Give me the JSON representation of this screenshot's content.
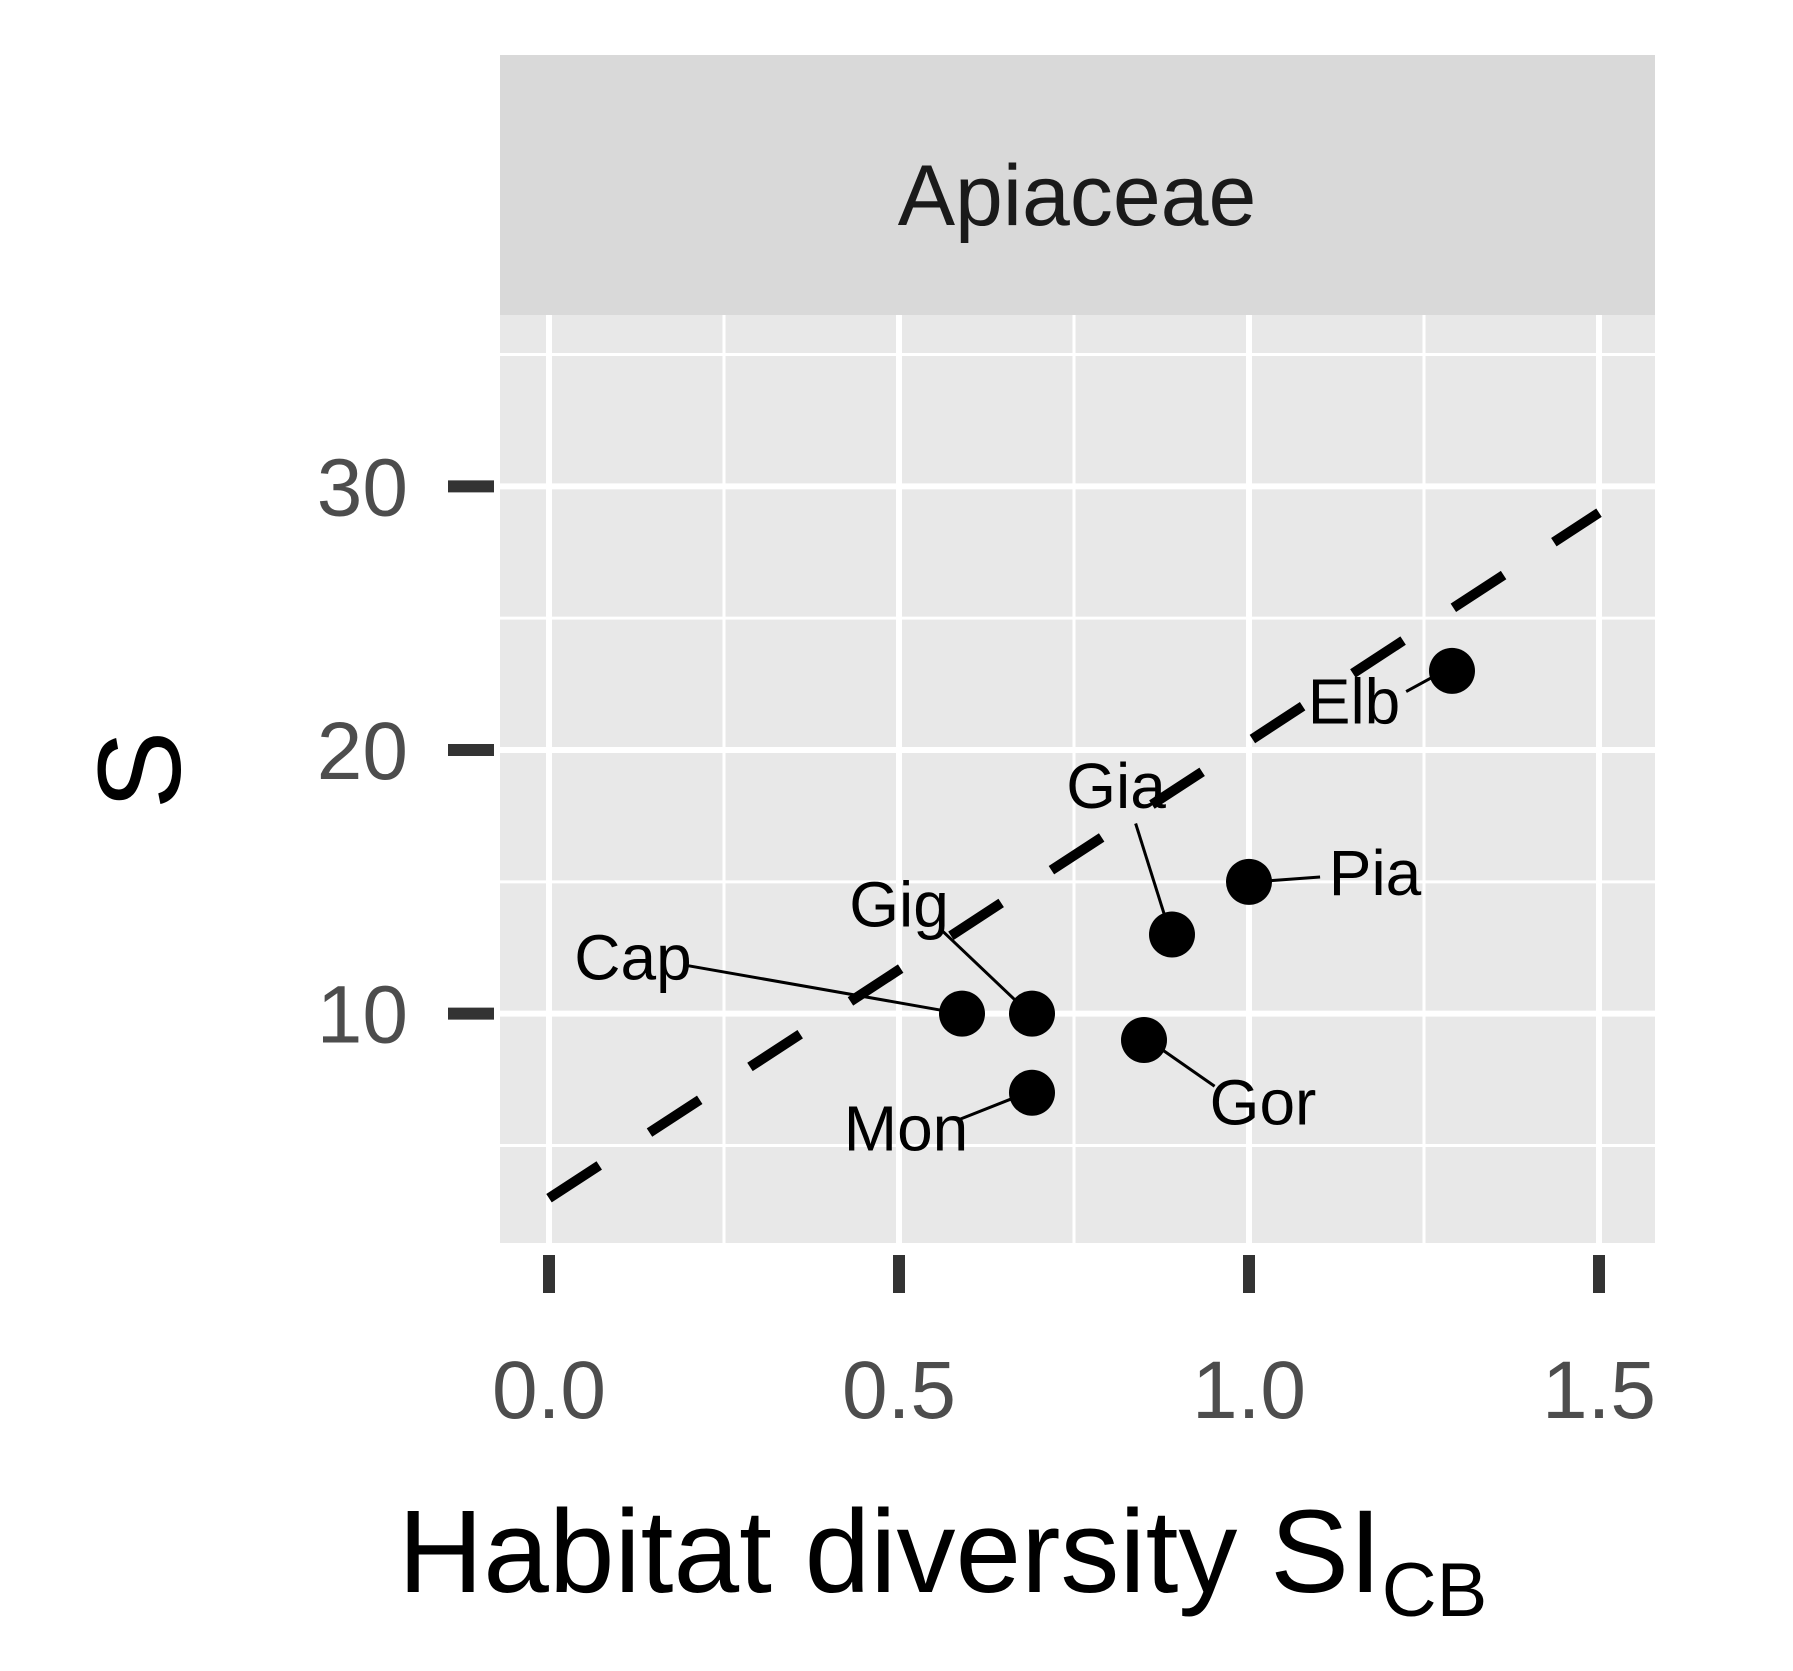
{
  "chart_data": {
    "type": "scatter",
    "panel_title": "Apiaceae",
    "xlabel_main": "Habitat diversity SI",
    "xlabel_sub": "CB",
    "ylabel": "S",
    "xlim": [
      -0.07,
      1.58
    ],
    "ylim": [
      1.3,
      36.5
    ],
    "x_ticks": [
      0.0,
      0.5,
      1.0,
      1.5
    ],
    "x_tick_labels": [
      "0.0",
      "0.5",
      "1.0",
      "1.5"
    ],
    "y_ticks": [
      10,
      20,
      30
    ],
    "y_tick_labels": [
      "10",
      "20",
      "30"
    ],
    "grid": true,
    "points": [
      {
        "label": "Cap",
        "x": 0.59,
        "y": 10.0,
        "label_x": 0.12,
        "label_y": 11.3
      },
      {
        "label": "Gig",
        "x": 0.69,
        "y": 10.0,
        "label_x": 0.5,
        "label_y": 13.3
      },
      {
        "label": "Mon",
        "x": 0.69,
        "y": 7.0,
        "label_x": 0.51,
        "label_y": 4.8
      },
      {
        "label": "Gor",
        "x": 0.85,
        "y": 9.0,
        "label_x": 1.02,
        "label_y": 5.8
      },
      {
        "label": "Gia",
        "x": 0.89,
        "y": 13.0,
        "label_x": 0.81,
        "label_y": 17.8
      },
      {
        "label": "Pia",
        "x": 1.0,
        "y": 15.0,
        "label_x": 1.18,
        "label_y": 14.5
      },
      {
        "label": "Elb",
        "x": 1.29,
        "y": 23.0,
        "label_x": 1.15,
        "label_y": 21.0
      }
    ],
    "fit_line": {
      "style": "dashed",
      "x": [
        0.0,
        1.5
      ],
      "y": [
        3.0,
        29.0
      ]
    }
  }
}
